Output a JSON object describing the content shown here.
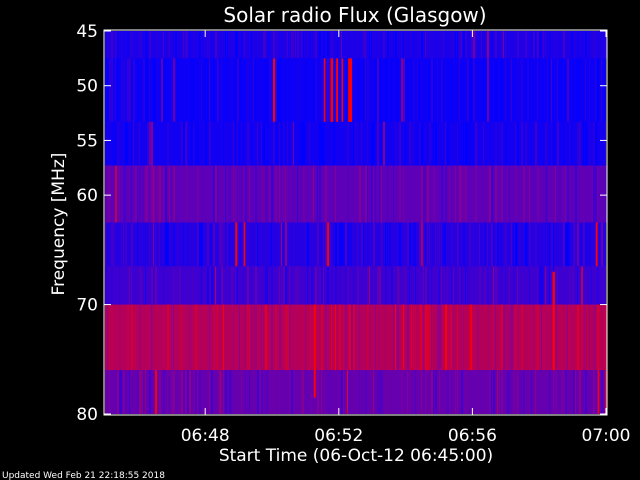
{
  "chart_data": {
    "type": "heatmap",
    "title": "Solar radio Flux (Glasgow)",
    "xlabel": "Start Time (06-Oct-12 06:45:00)",
    "ylabel": "Frequency [MHz]",
    "x_range_minutes": [
      0,
      15
    ],
    "x_ticks": [
      {
        "label": "06:48",
        "minutes": 3
      },
      {
        "label": "06:52",
        "minutes": 7
      },
      {
        "label": "06:56",
        "minutes": 11
      },
      {
        "label": "07:00",
        "minutes": 15
      }
    ],
    "ylim": [
      45,
      80
    ],
    "y_inverted": true,
    "y_ticks": [
      45,
      50,
      55,
      60,
      70,
      80
    ],
    "colors": {
      "low": "#0000ff",
      "mid": "#7a00a0",
      "high": "#ff0000"
    },
    "frequency_bands": [
      {
        "from": 45,
        "to": 47.5,
        "level": 0.12
      },
      {
        "from": 47.5,
        "to": 53.3,
        "level": 0.05
      },
      {
        "from": 53.3,
        "to": 57.3,
        "level": 0.08
      },
      {
        "from": 57.3,
        "to": 62.5,
        "level": 0.38
      },
      {
        "from": 62.5,
        "to": 66.5,
        "level": 0.15
      },
      {
        "from": 66.5,
        "to": 70.0,
        "level": 0.25
      },
      {
        "from": 70.0,
        "to": 76.0,
        "level": 0.72
      },
      {
        "from": 76.0,
        "to": 80.0,
        "level": 0.42
      }
    ],
    "bursts": [
      {
        "minute": 5.03,
        "width": 0.06,
        "from": 47.5,
        "to": 53.3
      },
      {
        "minute": 6.55,
        "width": 0.05,
        "from": 47.5,
        "to": 53.3
      },
      {
        "minute": 6.75,
        "width": 0.08,
        "from": 47.5,
        "to": 53.3
      },
      {
        "minute": 6.92,
        "width": 0.06,
        "from": 47.5,
        "to": 53.3
      },
      {
        "minute": 7.08,
        "width": 0.05,
        "from": 47.5,
        "to": 53.3
      },
      {
        "minute": 7.28,
        "width": 0.12,
        "from": 47.5,
        "to": 53.3
      },
      {
        "minute": 6.65,
        "width": 0.06,
        "from": 62.5,
        "to": 66.5
      },
      {
        "minute": 3.9,
        "width": 0.06,
        "from": 62.5,
        "to": 66.5
      },
      {
        "minute": 4.15,
        "width": 0.05,
        "from": 62.5,
        "to": 66.5
      },
      {
        "minute": 14.7,
        "width": 0.05,
        "from": 62.5,
        "to": 66.5
      },
      {
        "minute": 13.4,
        "width": 0.07,
        "from": 67.0,
        "to": 76.0
      },
      {
        "minute": 6.25,
        "width": 0.06,
        "from": 70.0,
        "to": 78.5
      },
      {
        "minute": 1.5,
        "width": 0.06,
        "from": 76.0,
        "to": 80.0
      },
      {
        "minute": 14.75,
        "width": 0.05,
        "from": 76.0,
        "to": 80.0
      }
    ]
  },
  "footer": {
    "updated": "Updated Wed Feb 21 22:18:55 2018"
  }
}
